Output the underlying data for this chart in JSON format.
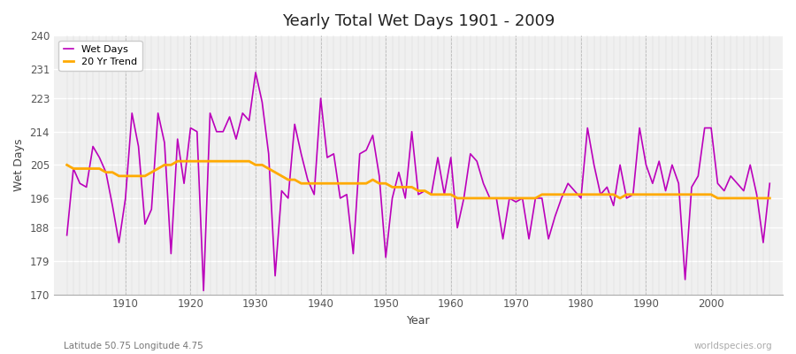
{
  "title": "Yearly Total Wet Days 1901 - 2009",
  "xlabel": "Year",
  "ylabel": "Wet Days",
  "subtitle_left": "Latitude 50.75 Longitude 4.75",
  "subtitle_right": "worldspecies.org",
  "wet_days_color": "#bb00bb",
  "trend_color": "#ffaa00",
  "background_color": "#ffffff",
  "plot_bg_color": "#f0f0f0",
  "ylim": [
    170,
    240
  ],
  "yticks": [
    170,
    179,
    188,
    196,
    205,
    214,
    223,
    231,
    240
  ],
  "years": [
    1901,
    1902,
    1903,
    1904,
    1905,
    1906,
    1907,
    1908,
    1909,
    1910,
    1911,
    1912,
    1913,
    1914,
    1915,
    1916,
    1917,
    1918,
    1919,
    1920,
    1921,
    1922,
    1923,
    1924,
    1925,
    1926,
    1927,
    1928,
    1929,
    1930,
    1931,
    1932,
    1933,
    1934,
    1935,
    1936,
    1937,
    1938,
    1939,
    1940,
    1941,
    1942,
    1943,
    1944,
    1945,
    1946,
    1947,
    1948,
    1949,
    1950,
    1951,
    1952,
    1953,
    1954,
    1955,
    1956,
    1957,
    1958,
    1959,
    1960,
    1961,
    1962,
    1963,
    1964,
    1965,
    1966,
    1967,
    1968,
    1969,
    1970,
    1971,
    1972,
    1973,
    1974,
    1975,
    1976,
    1977,
    1978,
    1979,
    1980,
    1981,
    1982,
    1983,
    1984,
    1985,
    1986,
    1987,
    1988,
    1989,
    1990,
    1991,
    1992,
    1993,
    1994,
    1995,
    1996,
    1997,
    1998,
    1999,
    2000,
    2001,
    2002,
    2003,
    2004,
    2005,
    2006,
    2007,
    2008,
    2009
  ],
  "wet_days": [
    186,
    204,
    200,
    199,
    210,
    207,
    203,
    194,
    184,
    196,
    219,
    210,
    189,
    193,
    219,
    211,
    181,
    212,
    200,
    215,
    214,
    171,
    219,
    214,
    214,
    218,
    212,
    219,
    217,
    230,
    222,
    208,
    175,
    198,
    196,
    216,
    208,
    201,
    197,
    223,
    207,
    208,
    196,
    197,
    181,
    208,
    209,
    213,
    202,
    180,
    196,
    203,
    196,
    214,
    197,
    198,
    197,
    207,
    197,
    207,
    188,
    196,
    208,
    206,
    200,
    196,
    196,
    185,
    196,
    195,
    196,
    185,
    196,
    196,
    185,
    191,
    196,
    200,
    198,
    196,
    215,
    205,
    197,
    199,
    194,
    205,
    196,
    197,
    215,
    205,
    200,
    206,
    198,
    205,
    200,
    174,
    199,
    202,
    215,
    215,
    200,
    198,
    202,
    200,
    198,
    205,
    197,
    184,
    200
  ],
  "trend": [
    205,
    204,
    204,
    204,
    204,
    204,
    203,
    203,
    202,
    202,
    202,
    202,
    202,
    203,
    204,
    205,
    205,
    206,
    206,
    206,
    206,
    206,
    206,
    206,
    206,
    206,
    206,
    206,
    206,
    205,
    205,
    204,
    203,
    202,
    201,
    201,
    200,
    200,
    200,
    200,
    200,
    200,
    200,
    200,
    200,
    200,
    200,
    201,
    200,
    200,
    199,
    199,
    199,
    199,
    198,
    198,
    197,
    197,
    197,
    197,
    196,
    196,
    196,
    196,
    196,
    196,
    196,
    196,
    196,
    196,
    196,
    196,
    196,
    197,
    197,
    197,
    197,
    197,
    197,
    197,
    197,
    197,
    197,
    197,
    197,
    196,
    197,
    197,
    197,
    197,
    197,
    197,
    197,
    197,
    197,
    197,
    197,
    197,
    197,
    197,
    196,
    196,
    196,
    196,
    196,
    196,
    196,
    196,
    196
  ]
}
